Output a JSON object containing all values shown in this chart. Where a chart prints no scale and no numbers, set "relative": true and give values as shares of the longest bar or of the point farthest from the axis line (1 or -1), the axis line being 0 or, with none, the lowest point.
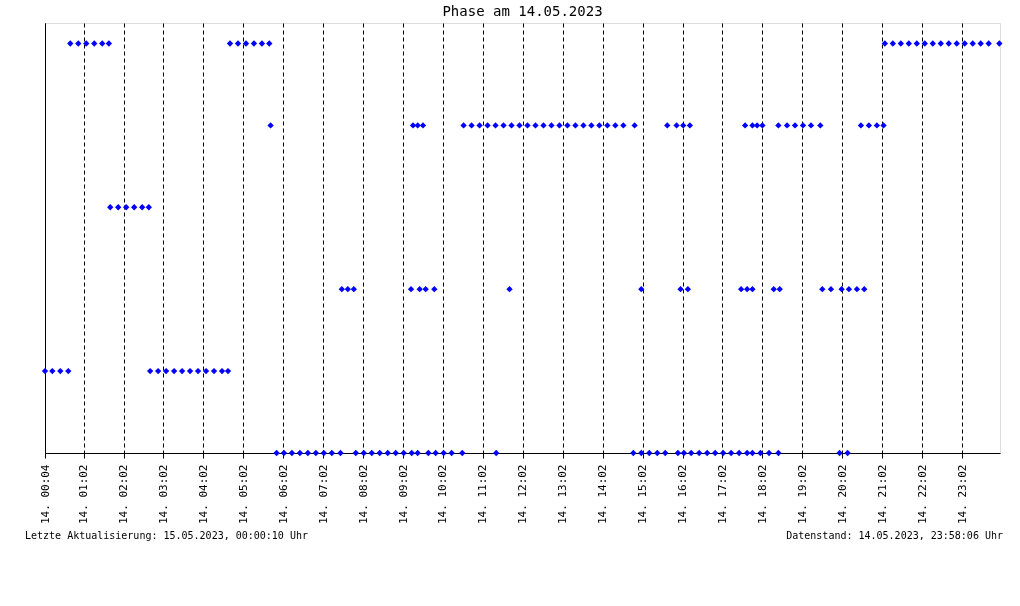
{
  "chart_data": {
    "type": "scatter",
    "title": "Phase am 14.05.2023",
    "relative": true,
    "marker": "diamond",
    "grid": "x",
    "legend": false,
    "xlim": [
      "2023-05-14T00:04",
      "2023-05-14T23:59"
    ],
    "xticks": [
      {
        "value": "2023-05-14T00:04",
        "label": "14. 00:04"
      },
      {
        "value": "2023-05-14T01:02",
        "label": "14. 01:02"
      },
      {
        "value": "2023-05-14T02:02",
        "label": "14. 02:02"
      },
      {
        "value": "2023-05-14T03:02",
        "label": "14. 03:02"
      },
      {
        "value": "2023-05-14T04:02",
        "label": "14. 04:02"
      },
      {
        "value": "2023-05-14T05:02",
        "label": "14. 05:02"
      },
      {
        "value": "2023-05-14T06:02",
        "label": "14. 06:02"
      },
      {
        "value": "2023-05-14T07:02",
        "label": "14. 07:02"
      },
      {
        "value": "2023-05-14T08:02",
        "label": "14. 08:02"
      },
      {
        "value": "2023-05-14T09:02",
        "label": "14. 09:02"
      },
      {
        "value": "2023-05-14T10:02",
        "label": "14. 10:02"
      },
      {
        "value": "2023-05-14T11:02",
        "label": "14. 11:02"
      },
      {
        "value": "2023-05-14T12:02",
        "label": "14. 12:02"
      },
      {
        "value": "2023-05-14T13:02",
        "label": "14. 13:02"
      },
      {
        "value": "2023-05-14T14:02",
        "label": "14. 14:02"
      },
      {
        "value": "2023-05-14T15:02",
        "label": "14. 15:02"
      },
      {
        "value": "2023-05-14T16:02",
        "label": "14. 16:02"
      },
      {
        "value": "2023-05-14T17:02",
        "label": "14. 17:02"
      },
      {
        "value": "2023-05-14T18:02",
        "label": "14. 18:02"
      },
      {
        "value": "2023-05-14T19:02",
        "label": "14. 19:02"
      },
      {
        "value": "2023-05-14T20:02",
        "label": "14. 20:02"
      },
      {
        "value": "2023-05-14T21:02",
        "label": "14. 21:02"
      },
      {
        "value": "2023-05-14T22:02",
        "label": "14. 22:02"
      },
      {
        "value": "2023-05-14T23:02",
        "label": "14. 23:02"
      }
    ],
    "series": [
      {
        "color": "#0000ff",
        "x": [
          "2023-05-14T00:04",
          "2023-05-14T00:15",
          "2023-05-14T00:27",
          "2023-05-14T00:39",
          "2023-05-14T00:42",
          "2023-05-14T00:54",
          "2023-05-14T01:06",
          "2023-05-14T01:18",
          "2023-05-14T01:30",
          "2023-05-14T01:40",
          "2023-05-14T01:42",
          "2023-05-14T01:54",
          "2023-05-14T02:06",
          "2023-05-14T02:18",
          "2023-05-14T02:30",
          "2023-05-14T02:40",
          "2023-05-14T02:42",
          "2023-05-14T02:54",
          "2023-05-14T03:06",
          "2023-05-14T03:18",
          "2023-05-14T03:30",
          "2023-05-14T03:42",
          "2023-05-14T03:54",
          "2023-05-14T04:06",
          "2023-05-14T04:18",
          "2023-05-14T04:30",
          "2023-05-14T04:39",
          "2023-05-14T04:42",
          "2023-05-14T04:54",
          "2023-05-14T05:06",
          "2023-05-14T05:18",
          "2023-05-14T05:30",
          "2023-05-14T05:41",
          "2023-05-14T05:43",
          "2023-05-14T05:52",
          "2023-05-14T06:03",
          "2023-05-14T06:15",
          "2023-05-14T06:27",
          "2023-05-14T06:39",
          "2023-05-14T06:51",
          "2023-05-14T07:03",
          "2023-05-14T07:15",
          "2023-05-14T07:28",
          "2023-05-14T07:30",
          "2023-05-14T07:39",
          "2023-05-14T07:48",
          "2023-05-14T07:51",
          "2023-05-14T08:03",
          "2023-05-14T08:15",
          "2023-05-14T08:27",
          "2023-05-14T08:39",
          "2023-05-14T08:51",
          "2023-05-14T09:03",
          "2023-05-14T09:15",
          "2023-05-14T09:24",
          "2023-05-14T09:14",
          "2023-05-14T09:27",
          "2023-05-14T09:36",
          "2023-05-14T09:49",
          "2023-05-14T09:17",
          "2023-05-14T09:24",
          "2023-05-14T09:32",
          "2023-05-14T09:40",
          "2023-05-14T09:51",
          "2023-05-14T10:03",
          "2023-05-14T10:15",
          "2023-05-14T10:31",
          "2023-05-14T10:33",
          "2023-05-14T10:45",
          "2023-05-14T10:57",
          "2023-05-14T11:09",
          "2023-05-14T11:21",
          "2023-05-14T11:33",
          "2023-05-14T11:45",
          "2023-05-14T11:57",
          "2023-05-14T12:09",
          "2023-05-14T12:21",
          "2023-05-14T12:33",
          "2023-05-14T12:45",
          "2023-05-14T12:57",
          "2023-05-14T13:09",
          "2023-05-14T13:21",
          "2023-05-14T13:33",
          "2023-05-14T13:45",
          "2023-05-14T13:57",
          "2023-05-14T14:09",
          "2023-05-14T14:21",
          "2023-05-14T14:33",
          "2023-05-14T14:50",
          "2023-05-14T11:42",
          "2023-05-14T11:22",
          "2023-05-14T15:00",
          "2023-05-14T14:48",
          "2023-05-14T15:00",
          "2023-05-14T15:12",
          "2023-05-14T15:24",
          "2023-05-14T15:36",
          "2023-05-14T15:55",
          "2023-05-14T15:39",
          "2023-05-14T15:53",
          "2023-05-14T16:03",
          "2023-05-14T16:13",
          "2023-05-14T15:59",
          "2023-05-14T16:10",
          "2023-05-14T16:04",
          "2023-05-14T16:15",
          "2023-05-14T16:27",
          "2023-05-14T16:39",
          "2023-05-14T16:51",
          "2023-05-14T17:03",
          "2023-05-14T17:15",
          "2023-05-14T17:27",
          "2023-05-14T17:39",
          "2023-05-14T17:47",
          "2023-05-14T17:36",
          "2023-05-14T17:47",
          "2023-05-14T17:54",
          "2023-05-14T18:02",
          "2023-05-14T17:30",
          "2023-05-14T17:39",
          "2023-05-14T17:47",
          "2023-05-14T17:59",
          "2023-05-14T18:12",
          "2023-05-14T18:26",
          "2023-05-14T18:19",
          "2023-05-14T18:28",
          "2023-05-14T18:26",
          "2023-05-14T18:39",
          "2023-05-14T18:51",
          "2023-05-14T19:03",
          "2023-05-14T19:15",
          "2023-05-14T19:29",
          "2023-05-14T19:32",
          "2023-05-14T19:45",
          "2023-05-14T20:01",
          "2023-05-14T19:58",
          "2023-05-14T20:10",
          "2023-05-14T20:12",
          "2023-05-14T20:24",
          "2023-05-14T20:35",
          "2023-05-14T20:30",
          "2023-05-14T20:42",
          "2023-05-14T20:54",
          "2023-05-14T21:04",
          "2023-05-14T21:06",
          "2023-05-14T21:18",
          "2023-05-14T21:30",
          "2023-05-14T21:42",
          "2023-05-14T21:54",
          "2023-05-14T22:06",
          "2023-05-14T22:18",
          "2023-05-14T22:30",
          "2023-05-14T22:42",
          "2023-05-14T22:54",
          "2023-05-14T23:06",
          "2023-05-14T23:18",
          "2023-05-14T23:30",
          "2023-05-14T23:42",
          "2023-05-14T23:58"
        ],
        "values": [
          0.2,
          0.2,
          0.2,
          0.2,
          1,
          1,
          1,
          1,
          1,
          1,
          0.6,
          0.6,
          0.6,
          0.6,
          0.6,
          0.6,
          0.2,
          0.2,
          0.2,
          0.2,
          0.2,
          0.2,
          0.2,
          0.2,
          0.2,
          0.2,
          0.2,
          1,
          1,
          1,
          1,
          1,
          1,
          0.8,
          0,
          0,
          0,
          0,
          0,
          0,
          0,
          0,
          0,
          0.4,
          0.4,
          0.4,
          0,
          0,
          0,
          0,
          0,
          0,
          0,
          0,
          0,
          0.4,
          0.4,
          0.4,
          0.4,
          0.8,
          0.8,
          0.8,
          0,
          0,
          0,
          0,
          0,
          0.8,
          0.8,
          0.8,
          0.8,
          0.8,
          0.8,
          0.8,
          0.8,
          0.8,
          0.8,
          0.8,
          0.8,
          0.8,
          0.8,
          0.8,
          0.8,
          0.8,
          0.8,
          0.8,
          0.8,
          0.8,
          0.8,
          0.4,
          0,
          0.4,
          0,
          0,
          0,
          0,
          0,
          0,
          0.8,
          0.8,
          0.8,
          0.8,
          0.4,
          0.4,
          0,
          0,
          0,
          0,
          0,
          0,
          0,
          0,
          0,
          0,
          0.8,
          0.8,
          0.8,
          0.8,
          0.4,
          0.4,
          0.4,
          0,
          0,
          0,
          0.4,
          0.4,
          0.8,
          0.8,
          0.8,
          0.8,
          0.8,
          0.8,
          0.4,
          0.4,
          0.4,
          0,
          0,
          0.4,
          0.4,
          0.4,
          0.8,
          0.8,
          0.8,
          0.8,
          1,
          1,
          1,
          1,
          1,
          1,
          1,
          1,
          1,
          1,
          1,
          1,
          1,
          1,
          1
        ]
      }
    ],
    "annotations": [
      "Letzte Aktualisierung: 15.05.2023, 00:00:10 Uhr",
      "Datenstand: 14.05.2023, 23:58:06 Uhr"
    ]
  }
}
